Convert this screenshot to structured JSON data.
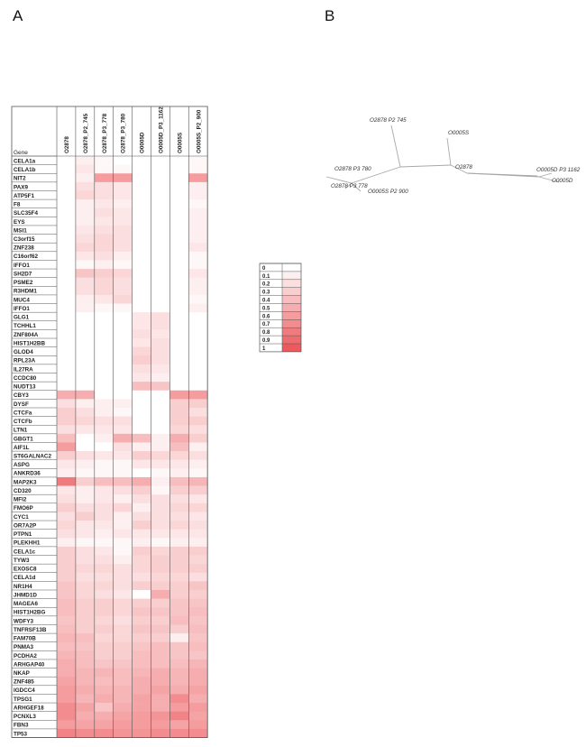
{
  "panels": {
    "a": "A",
    "b": "B"
  },
  "chart_data": [
    {
      "type": "heatmap",
      "panel": "A",
      "row_header": "Gene",
      "columns": [
        "O2878",
        "O2878_P2_745",
        "O2878_P3_778",
        "O2878_P3_780",
        "O0005D",
        "O0005D_P3_1162",
        "O0005S",
        "O0005S_P2_900"
      ],
      "rows": [
        "CELA1a",
        "CELA1b",
        "NIT2",
        "PAX9",
        "ATP5F1",
        "F8",
        "SLC35F4",
        "EYS",
        "MSI1",
        "C3orf15",
        "ZNF238",
        "C16orf62",
        "IFFO1",
        "SH2D7",
        "PSME2",
        "R3HDM1",
        "MUC4",
        "IFFO1",
        "GLG1",
        "TCHHL1",
        "ZNF804A",
        "HIST1H2BB",
        "GLOD4",
        "RPL23A",
        "IL27RA",
        "CCDC80",
        "NUDT13",
        "CBY3",
        "DYSF",
        "CTCFa",
        "CTCFb",
        "LTN1",
        "GBGT1",
        "AIF1L",
        "ST6GALNAC2",
        "ASPG",
        "ANKRD36",
        "MAP2K3",
        "CD320",
        "MFI2",
        "FMO6P",
        "CYC1",
        "OR7A2P",
        "PTPN1",
        "PLEKHH1",
        "CELA1c",
        "TYW3",
        "EXOSC8",
        "CELA1d",
        "NR1H4",
        "JHMD1D",
        "MAGEA6",
        "HIST1H2BG",
        "WDFY3",
        "TNFRSF13B",
        "FAM70B",
        "PNMA3",
        "PCDHA2",
        "ARHGAP40",
        "NKAP",
        "ZNF485",
        "IGDCC4",
        "TPSG1",
        "ARHGEF18",
        "PCNXL3",
        "FBN3",
        "TP53"
      ],
      "values": [
        [
          0,
          0.1,
          0.05,
          0,
          0,
          0,
          0,
          0.05
        ],
        [
          0,
          0.15,
          0.05,
          0.05,
          0,
          0,
          0,
          0.05
        ],
        [
          0,
          0.1,
          0.6,
          0.6,
          0,
          0,
          0,
          0.6
        ],
        [
          0,
          0.2,
          0.2,
          0.15,
          0,
          0,
          0,
          0.1
        ],
        [
          0,
          0.25,
          0.2,
          0.15,
          0,
          0,
          0,
          0.1
        ],
        [
          0,
          0.1,
          0.15,
          0.1,
          0,
          0,
          0,
          0.05
        ],
        [
          0,
          0.1,
          0.2,
          0.15,
          0,
          0,
          0,
          0.1
        ],
        [
          0,
          0.1,
          0.15,
          0.15,
          0,
          0,
          0,
          0.1
        ],
        [
          0,
          0.15,
          0.2,
          0.2,
          0,
          0,
          0,
          0.1
        ],
        [
          0,
          0.2,
          0.25,
          0.2,
          0,
          0,
          0,
          0.1
        ],
        [
          0,
          0.25,
          0.25,
          0.2,
          0,
          0,
          0,
          0.15
        ],
        [
          0,
          0.15,
          0.2,
          0.1,
          0,
          0,
          0,
          0.05
        ],
        [
          0,
          0.05,
          0.1,
          0.05,
          0,
          0,
          0,
          0.05
        ],
        [
          0,
          0.35,
          0.3,
          0.25,
          0,
          0,
          0,
          0.15
        ],
        [
          0,
          0.2,
          0.25,
          0.2,
          0,
          0,
          0,
          0.1
        ],
        [
          0,
          0.2,
          0.25,
          0.2,
          0,
          0,
          0,
          0.1
        ],
        [
          0,
          0.1,
          0.15,
          0.25,
          0,
          0,
          0,
          0.05
        ],
        [
          0,
          0.1,
          0.05,
          0.05,
          0,
          0,
          0,
          0.1
        ],
        [
          0,
          0,
          0,
          0,
          0.15,
          0.2,
          0,
          0
        ],
        [
          0,
          0,
          0,
          0,
          0.15,
          0.2,
          0,
          0
        ],
        [
          0,
          0,
          0,
          0,
          0.2,
          0.15,
          0,
          0
        ],
        [
          0,
          0,
          0,
          0,
          0.15,
          0.2,
          0,
          0
        ],
        [
          0,
          0,
          0,
          0,
          0.25,
          0.2,
          0,
          0
        ],
        [
          0,
          0,
          0,
          0,
          0.3,
          0.2,
          0,
          0
        ],
        [
          0,
          0,
          0,
          0,
          0.2,
          0.15,
          0,
          0
        ],
        [
          0,
          0,
          0,
          0,
          0.15,
          0.1,
          0,
          0
        ],
        [
          0,
          0,
          0,
          0,
          0.4,
          0.35,
          0,
          0
        ],
        [
          0.5,
          0.5,
          0,
          0,
          0,
          0,
          0.6,
          0.6
        ],
        [
          0.2,
          0.1,
          0.1,
          0.1,
          0,
          0,
          0.3,
          0.3
        ],
        [
          0.3,
          0.2,
          0.1,
          0.05,
          0,
          0,
          0.3,
          0.2
        ],
        [
          0.3,
          0.25,
          0.2,
          0.2,
          0,
          0,
          0.3,
          0.3
        ],
        [
          0.2,
          0.15,
          0.15,
          0.15,
          0,
          0,
          0.25,
          0.2
        ],
        [
          0.4,
          0,
          0.1,
          0.5,
          0.4,
          0.1,
          0.5,
          0.3
        ],
        [
          0.6,
          0,
          0,
          0.2,
          0.1,
          0.1,
          0.4,
          0.1
        ],
        [
          0.3,
          0.2,
          0.15,
          0.15,
          0.3,
          0.25,
          0.25,
          0.2
        ],
        [
          0.15,
          0.1,
          0.05,
          0.05,
          0.15,
          0.15,
          0.15,
          0.1
        ],
        [
          0.1,
          0.05,
          0.05,
          0.05,
          0,
          0.05,
          0.1,
          0.05
        ],
        [
          0.8,
          0.3,
          0.4,
          0.4,
          0.5,
          0.1,
          0.4,
          0.45
        ],
        [
          0.15,
          0.1,
          0.15,
          0.2,
          0.3,
          0.05,
          0.3,
          0.3
        ],
        [
          0.2,
          0.1,
          0.15,
          0.1,
          0.2,
          0.2,
          0.2,
          0.15
        ],
        [
          0.3,
          0.2,
          0.2,
          0.25,
          0.1,
          0.2,
          0.25,
          0.25
        ],
        [
          0.2,
          0.3,
          0.2,
          0.1,
          0.2,
          0.2,
          0.2,
          0.15
        ],
        [
          0.25,
          0.15,
          0.15,
          0.1,
          0.3,
          0.2,
          0.25,
          0.2
        ],
        [
          0.2,
          0.15,
          0.1,
          0.15,
          0.15,
          0.15,
          0.15,
          0.15
        ],
        [
          0.1,
          0.05,
          0.05,
          0.05,
          0.1,
          0.05,
          0.1,
          0.1
        ],
        [
          0.3,
          0.2,
          0.15,
          0.05,
          0.3,
          0.25,
          0.3,
          0.3
        ],
        [
          0.3,
          0.2,
          0.2,
          0.1,
          0.25,
          0.3,
          0.3,
          0.25
        ],
        [
          0.3,
          0.25,
          0.25,
          0.2,
          0.25,
          0.3,
          0.3,
          0.3
        ],
        [
          0.3,
          0.2,
          0.2,
          0.2,
          0.2,
          0.25,
          0.25,
          0.2
        ],
        [
          0.35,
          0.25,
          0.25,
          0.2,
          0.3,
          0.3,
          0.3,
          0.35
        ],
        [
          0.35,
          0.25,
          0.2,
          0.15,
          0,
          0.5,
          0.3,
          0.3
        ],
        [
          0.4,
          0.3,
          0.3,
          0.25,
          0.3,
          0.3,
          0.35,
          0.35
        ],
        [
          0.4,
          0.3,
          0.3,
          0.25,
          0.35,
          0.35,
          0.35,
          0.4
        ],
        [
          0.35,
          0.3,
          0.25,
          0.2,
          0.3,
          0.3,
          0.4,
          0.35
        ],
        [
          0.4,
          0.3,
          0.3,
          0.25,
          0.35,
          0.35,
          0.3,
          0.4
        ],
        [
          0.45,
          0.4,
          0.25,
          0.25,
          0.3,
          0.3,
          0.1,
          0.35
        ],
        [
          0.4,
          0.35,
          0.3,
          0.3,
          0.35,
          0.4,
          0.35,
          0.4
        ],
        [
          0.45,
          0.4,
          0.3,
          0.3,
          0.4,
          0.4,
          0.35,
          0.35
        ],
        [
          0.5,
          0.4,
          0.35,
          0.35,
          0.4,
          0.4,
          0.4,
          0.45
        ],
        [
          0.5,
          0.45,
          0.45,
          0.4,
          0.45,
          0.5,
          0.45,
          0.5
        ],
        [
          0.55,
          0.45,
          0.4,
          0.4,
          0.5,
          0.5,
          0.45,
          0.5
        ],
        [
          0.6,
          0.5,
          0.45,
          0.45,
          0.5,
          0.55,
          0.5,
          0.55
        ],
        [
          0.6,
          0.45,
          0.5,
          0.45,
          0.55,
          0.5,
          0.7,
          0.5
        ],
        [
          0.7,
          0.55,
          0.35,
          0.5,
          0.55,
          0.5,
          0.6,
          0.6
        ],
        [
          0.7,
          0.5,
          0.5,
          0.55,
          0.6,
          0.65,
          0.75,
          0.55
        ],
        [
          0.6,
          0.55,
          0.55,
          0.6,
          0.6,
          0.6,
          0.55,
          0.6
        ],
        [
          0.75,
          0.7,
          0.7,
          0.65,
          0.65,
          0.7,
          0.7,
          0.7
        ]
      ]
    },
    {
      "type": "legend",
      "panel": "A",
      "labels": [
        "0",
        "0.1",
        "0.2",
        "0.3",
        "0.4",
        "0.5",
        "0.6",
        "0.7",
        "0.8",
        "0.9",
        "1"
      ],
      "values": [
        0,
        0.1,
        0.2,
        0.3,
        0.4,
        0.5,
        0.6,
        0.7,
        0.8,
        0.9,
        1
      ]
    },
    {
      "type": "tree",
      "panel": "B",
      "leaves": [
        "O2878 P2 745",
        "O0005S",
        "O2878 P3 780",
        "O2878",
        "O0005D P3 1162",
        "O0005D",
        "O2878 P3 778",
        "O0005S P2 900"
      ]
    }
  ],
  "colors": {
    "high": "#ec5a5e",
    "low": "#ffffff",
    "grid": "#555555",
    "tree": "#a8a8a8"
  }
}
